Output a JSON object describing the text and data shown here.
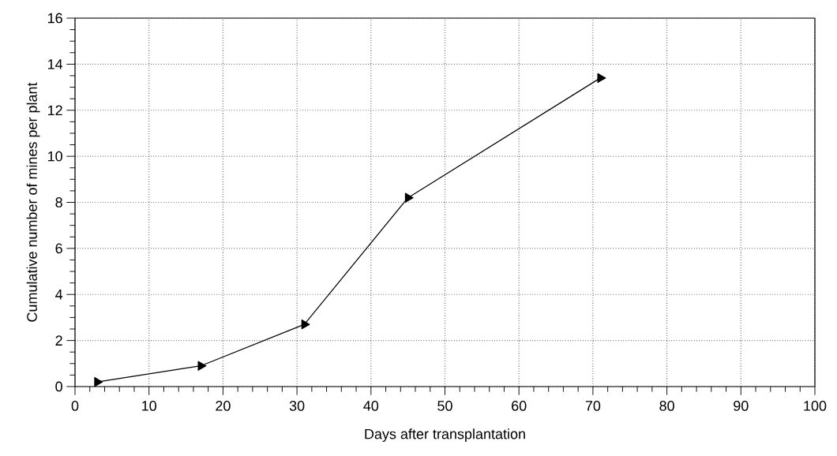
{
  "chart_data": {
    "type": "line",
    "xlabel": "Days after transplantation",
    "ylabel": "Cumulative number of mines per plant",
    "x": [
      3,
      17,
      31,
      45,
      71
    ],
    "series": [
      {
        "color": "#000000",
        "values": [
          0.2,
          0.9,
          2.7,
          8.2,
          13.4
        ]
      }
    ],
    "xlim": [
      0,
      100
    ],
    "xticks": [
      0,
      10,
      20,
      30,
      40,
      50,
      60,
      70,
      80,
      90,
      100
    ],
    "ylim": [
      0,
      16
    ],
    "yticks": [
      0,
      2,
      4,
      6,
      8,
      10,
      12,
      14,
      16
    ],
    "grid": true,
    "marker": "triangle",
    "line_style": "solid"
  }
}
